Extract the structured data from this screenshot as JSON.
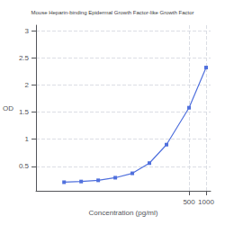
{
  "chart_data": {
    "type": "line",
    "title": "Mouse Heparin-binding Epidermal Growth Factor-like Growth Factor",
    "xlabel": "Concentration (pg/ml)",
    "ylabel": "OD",
    "x": [
      3.125,
      6.25,
      12.5,
      25,
      50,
      100,
      200,
      500,
      1000
    ],
    "values": [
      0.208,
      0.221,
      0.243,
      0.291,
      0.372,
      0.56,
      0.9,
      1.58,
      2.32
    ],
    "xlim": [
      1,
      1200
    ],
    "ylim": [
      0.05,
      3.1
    ],
    "xticks": [
      500,
      1000
    ],
    "yticks": [
      0.5,
      1,
      1.5,
      2,
      2.5,
      3
    ],
    "log": "x",
    "grid": true,
    "marker": "square"
  }
}
